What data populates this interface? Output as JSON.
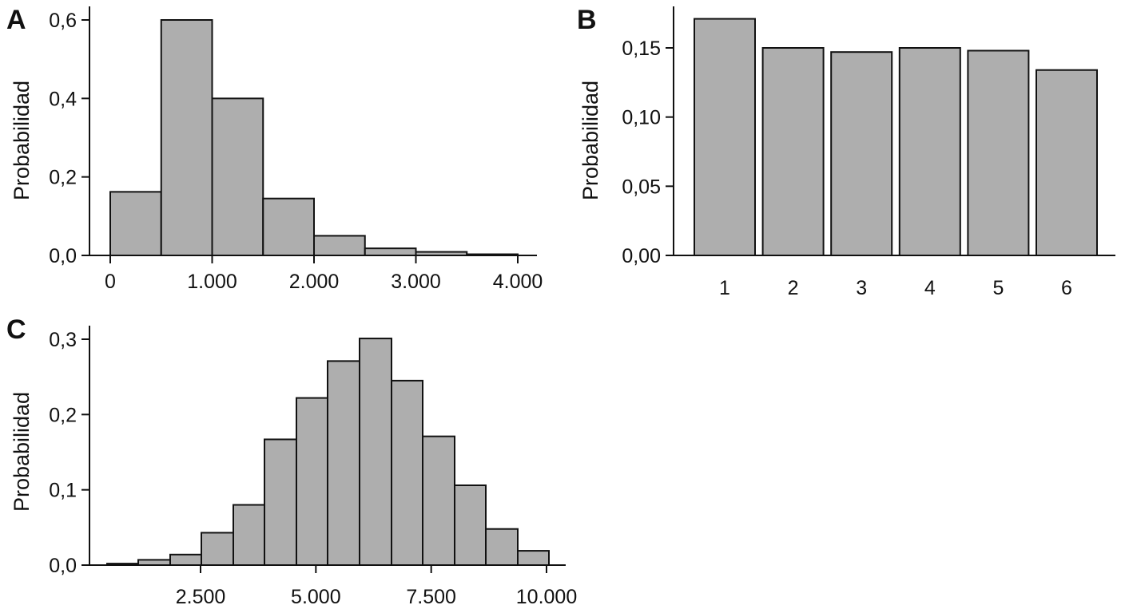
{
  "chart_data": [
    {
      "panel": "A",
      "type": "bar",
      "histogram": true,
      "bin_edges": [
        0,
        500,
        1000,
        1500,
        2000,
        2500,
        3000,
        3500,
        4000
      ],
      "values": [
        0.162,
        0.6,
        0.4,
        0.145,
        0.05,
        0.018,
        0.009,
        0.003
      ],
      "xticks": [
        0,
        1000,
        2000,
        3000,
        4000
      ],
      "xtick_labels": [
        "0",
        "1.000",
        "2.000",
        "3.000",
        "4.000"
      ],
      "yticks": [
        0,
        0.2,
        0.4,
        0.6
      ],
      "ytick_labels": [
        "0,0",
        "0,2",
        "0,4",
        "0,6"
      ],
      "xlim": [
        0,
        4000
      ],
      "ylim": [
        0,
        0.6
      ],
      "xlabel": "",
      "ylabel": "Probabilidad",
      "grid": false
    },
    {
      "panel": "B",
      "type": "bar",
      "categories": [
        "1",
        "2",
        "3",
        "4",
        "5",
        "6"
      ],
      "values": [
        0.171,
        0.15,
        0.147,
        0.15,
        0.148,
        0.134
      ],
      "yticks": [
        0,
        0.05,
        0.1,
        0.15
      ],
      "ytick_labels": [
        "0,00",
        "0,05",
        "0,10",
        "0,15"
      ],
      "ylim": [
        0,
        0.15
      ],
      "xlabel": "",
      "ylabel": "Probabilidad",
      "grid": false
    },
    {
      "panel": "C",
      "type": "bar",
      "histogram": true,
      "bin_edges": [
        500,
        1200,
        1900,
        2600,
        3300,
        4000,
        4700,
        5400,
        6100,
        6800,
        7500,
        8200,
        8900,
        9600,
        10300
      ],
      "bin_edges_note": "",
      "values": [
        0.002,
        0.007,
        0.014,
        0.043,
        0.08,
        0.167,
        0.222,
        0.271,
        0.301,
        0.245,
        0.171,
        0.106,
        0.048,
        0.019
      ],
      "xticks": [
        2500,
        5000,
        7500,
        10000
      ],
      "xtick_labels": [
        "2.500",
        "5.000",
        "7.500",
        "10.000"
      ],
      "yticks": [
        0,
        0.1,
        0.2,
        0.3
      ],
      "ytick_labels": [
        "0,0",
        "0,1",
        "0,2",
        "0,3"
      ],
      "xlim": [
        500,
        10300
      ],
      "ylim": [
        0,
        0.3
      ],
      "xlabel": "",
      "ylabel": "Probabilidad",
      "grid": false
    }
  ]
}
